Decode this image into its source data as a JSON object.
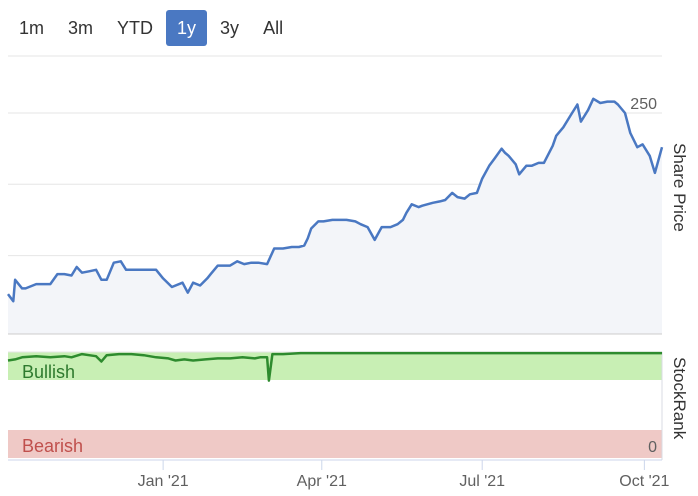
{
  "range_buttons": [
    {
      "label": "1m",
      "active": false
    },
    {
      "label": "3m",
      "active": false
    },
    {
      "label": "YTD",
      "active": false
    },
    {
      "label": "1y",
      "active": true
    },
    {
      "label": "3y",
      "active": false
    },
    {
      "label": "All",
      "active": false
    }
  ],
  "colors": {
    "price_line": "#4a78c2",
    "price_fill": "#f3f5f9",
    "rank_line": "#2e8b2e",
    "bullish_zone": "#c8efb4",
    "bearish_zone": "#efc9c6",
    "bearish_text": "#c0504d",
    "bullish_text": "#2e7a2e",
    "grid": "#e6e6e6"
  },
  "chart_data": [
    {
      "type": "line",
      "name": "price-panel",
      "ylabel": "Share Price",
      "yticks": [
        100,
        150,
        200,
        250
      ],
      "ylim": [
        95,
        290
      ],
      "x_tick_labels": [
        "Jan '21",
        "Apr '21",
        "Jul '21",
        "Oct '21"
      ],
      "x": [
        "2020-10-05",
        "2020-10-08",
        "2020-10-09",
        "2020-10-13",
        "2020-10-15",
        "2020-10-21",
        "2020-10-29",
        "2020-11-02",
        "2020-11-06",
        "2020-11-10",
        "2020-11-13",
        "2020-11-16",
        "2020-11-20",
        "2020-11-24",
        "2020-11-27",
        "2020-11-30",
        "2020-12-04",
        "2020-12-08",
        "2020-12-11",
        "2020-12-14",
        "2020-12-17",
        "2020-12-21",
        "2020-12-24",
        "2020-12-28",
        "2021-01-01",
        "2021-01-06",
        "2021-01-12",
        "2021-01-15",
        "2021-01-18",
        "2021-01-22",
        "2021-01-26",
        "2021-01-28",
        "2021-02-01",
        "2021-02-04",
        "2021-02-08",
        "2021-02-12",
        "2021-02-16",
        "2021-02-20",
        "2021-02-24",
        "2021-03-01",
        "2021-03-05",
        "2021-03-08",
        "2021-03-10",
        "2021-03-15",
        "2021-03-19",
        "2021-03-22",
        "2021-03-24",
        "2021-03-26",
        "2021-03-30",
        "2021-04-02",
        "2021-04-07",
        "2021-04-12",
        "2021-04-15",
        "2021-04-20",
        "2021-04-23",
        "2021-04-27",
        "2021-05-01",
        "2021-05-05",
        "2021-05-10",
        "2021-05-14",
        "2021-05-17",
        "2021-05-19",
        "2021-05-22",
        "2021-05-26",
        "2021-05-28",
        "2021-06-03",
        "2021-06-07",
        "2021-06-10",
        "2021-06-14",
        "2021-06-17",
        "2021-06-21",
        "2021-06-24",
        "2021-06-28",
        "2021-07-01",
        "2021-07-05",
        "2021-07-08",
        "2021-07-12",
        "2021-07-14",
        "2021-07-16",
        "2021-07-20",
        "2021-07-22",
        "2021-07-26",
        "2021-07-29",
        "2021-08-02",
        "2021-08-05",
        "2021-08-10",
        "2021-08-12",
        "2021-08-16",
        "2021-08-20",
        "2021-08-24",
        "2021-08-26",
        "2021-08-30",
        "2021-09-02",
        "2021-09-06",
        "2021-09-10",
        "2021-09-14",
        "2021-09-16",
        "2021-09-20",
        "2021-09-23",
        "2021-09-27",
        "2021-09-30",
        "2021-10-04",
        "2021-10-07",
        "2021-10-11"
      ],
      "y": [
        123,
        118,
        133,
        127,
        127,
        130,
        130,
        137,
        137,
        136,
        142,
        138,
        139,
        140,
        133,
        133,
        145,
        146,
        140,
        140,
        140,
        140,
        140,
        140,
        134,
        128,
        131,
        124,
        131,
        129,
        134,
        137,
        143,
        143,
        143,
        146,
        144,
        145,
        145,
        144,
        155,
        155,
        155,
        156,
        156,
        157,
        162,
        169,
        174,
        174,
        175,
        175,
        175,
        174,
        172,
        170,
        161,
        170,
        170,
        172,
        175,
        180,
        186,
        184,
        185,
        187,
        188,
        189,
        194,
        191,
        190,
        193,
        194,
        204,
        213,
        218,
        225,
        222,
        220,
        214,
        207,
        213,
        213,
        215,
        215,
        227,
        234,
        240,
        248,
        256,
        244,
        252,
        260,
        257,
        258,
        258,
        256,
        250,
        236,
        226,
        228,
        220,
        208,
        226
      ]
    },
    {
      "type": "line",
      "name": "stockrank-panel",
      "ylabel": "StockRank",
      "ytick_labels": [
        "0"
      ],
      "zones": [
        {
          "label": "Bullish"
        },
        {
          "label": "Bearish"
        }
      ],
      "ylim": [
        0,
        100
      ],
      "x": [
        "2020-10-05",
        "2020-10-09",
        "2020-10-13",
        "2020-10-21",
        "2020-10-29",
        "2020-11-06",
        "2020-11-10",
        "2020-11-16",
        "2020-11-20",
        "2020-11-24",
        "2020-11-27",
        "2020-11-30",
        "2020-12-07",
        "2020-12-14",
        "2020-12-21",
        "2020-12-28",
        "2021-01-04",
        "2021-01-08",
        "2021-01-13",
        "2021-01-18",
        "2021-01-25",
        "2021-02-01",
        "2021-02-08",
        "2021-02-15",
        "2021-02-22",
        "2021-02-25",
        "2021-03-01",
        "2021-03-02",
        "2021-03-04",
        "2021-03-10",
        "2021-03-20",
        "2021-04-01",
        "2021-05-01",
        "2021-06-01",
        "2021-07-01",
        "2021-08-01",
        "2021-09-01",
        "2021-10-11"
      ],
      "y": [
        92,
        93,
        95,
        96,
        95,
        96,
        95,
        98,
        97,
        96,
        91,
        97,
        98,
        98,
        97,
        95,
        94,
        92,
        93,
        92,
        93,
        94,
        94,
        95,
        94,
        95,
        95,
        73,
        98,
        98,
        99,
        99,
        99,
        99,
        99,
        99,
        99,
        99
      ]
    }
  ]
}
